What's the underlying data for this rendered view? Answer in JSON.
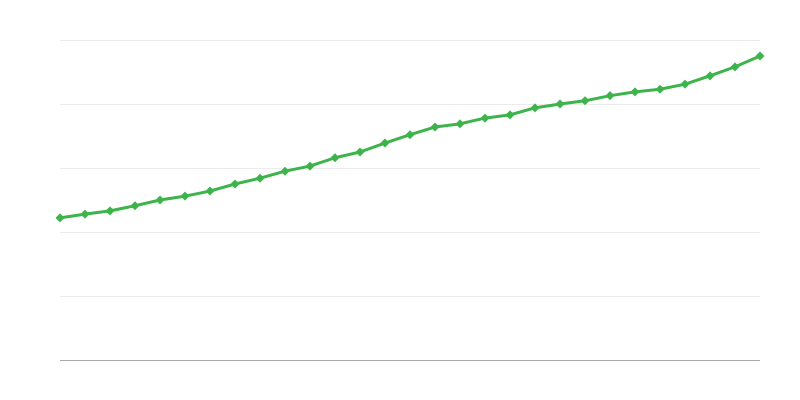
{
  "chart_data": {
    "type": "line",
    "title": "",
    "xlabel": "",
    "ylabel": "",
    "ylim": [
      0,
      5
    ],
    "grid": true,
    "legend": "none",
    "colors": {
      "series": "#3cb44b",
      "grid": "#ebebeb",
      "axis": "#aaaaaa"
    },
    "marker": "diamond",
    "x": [
      1,
      2,
      3,
      4,
      5,
      6,
      7,
      8,
      9,
      10,
      11,
      12,
      13,
      14,
      15,
      16,
      17,
      18,
      19,
      20,
      21,
      22,
      23,
      24,
      25,
      26,
      27,
      28,
      29
    ],
    "series": [
      {
        "values": [
          2.22,
          2.28,
          2.33,
          2.41,
          2.5,
          2.56,
          2.64,
          2.75,
          2.84,
          2.95,
          3.03,
          3.16,
          3.25,
          3.39,
          3.52,
          3.64,
          3.69,
          3.78,
          3.83,
          3.94,
          4.0,
          4.05,
          4.13,
          4.19,
          4.23,
          4.31,
          4.44,
          4.58,
          4.75
        ]
      }
    ]
  }
}
